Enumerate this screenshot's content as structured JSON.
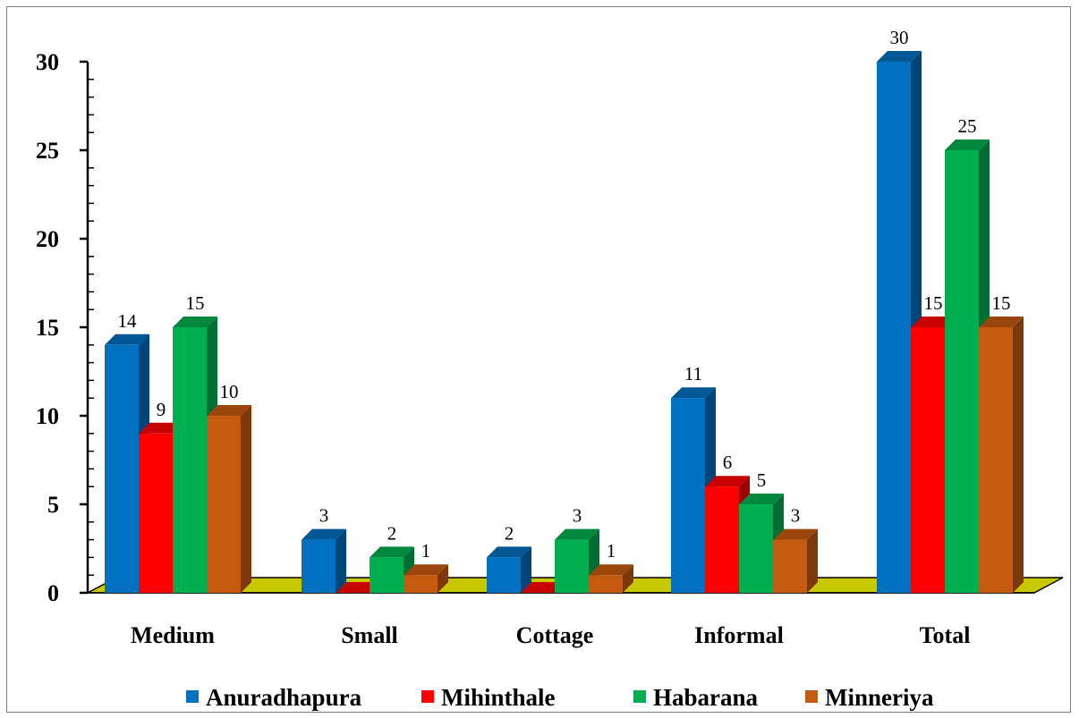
{
  "chart_data": {
    "type": "bar",
    "style": "3d-clustered-column",
    "title": "",
    "xlabel": "",
    "ylabel": "",
    "categories": [
      "Medium",
      "Small",
      "Cottage",
      "Informal",
      "Total"
    ],
    "series": [
      {
        "name": "Anuradhapura",
        "values": [
          14,
          3,
          2,
          11,
          30
        ],
        "color": "#0070C0"
      },
      {
        "name": "Mihinthale",
        "values": [
          9,
          0,
          0,
          6,
          15
        ],
        "color": "#FF0000"
      },
      {
        "name": "Habarana",
        "values": [
          15,
          2,
          3,
          5,
          25
        ],
        "color": "#00B050"
      },
      {
        "name": "Minneriya",
        "values": [
          10,
          1,
          1,
          3,
          15
        ],
        "color": "#C55A11"
      }
    ],
    "ylim": [
      0,
      30
    ],
    "yticks": [
      0,
      5,
      10,
      15,
      20,
      25,
      30
    ],
    "data_labels": true,
    "grid": false,
    "legend_position": "bottom",
    "floor_color": "#C8C800"
  }
}
